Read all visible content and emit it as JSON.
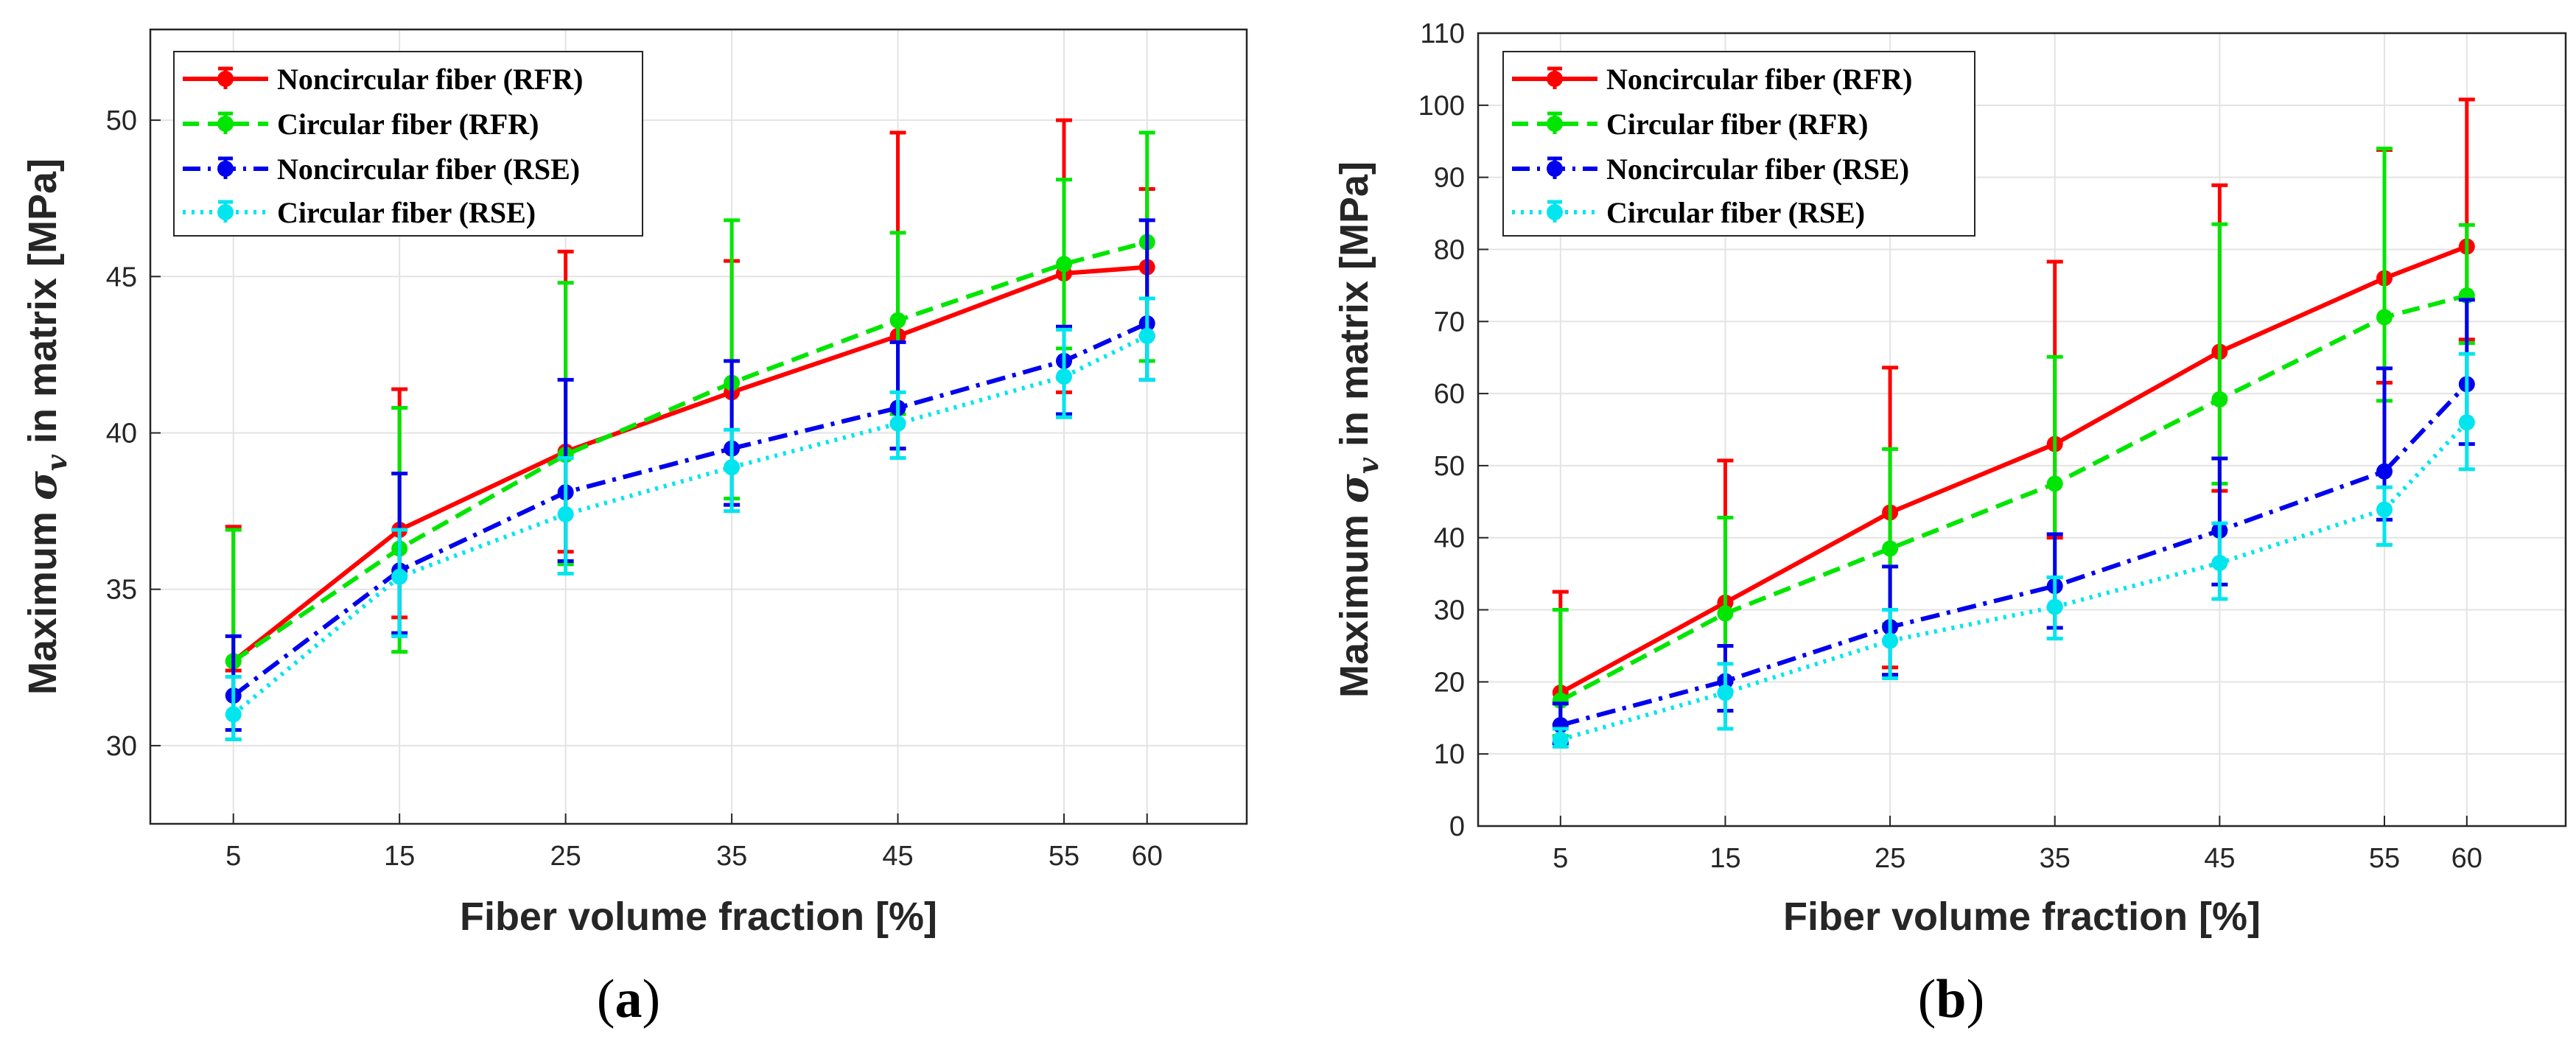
{
  "chart_data": [
    {
      "id": "a",
      "type": "line",
      "panel_label": "a",
      "xlabel": "Fiber volume fraction [%]",
      "ylabel_prefix": "Maximum ",
      "ylabel_symbol": "σ",
      "ylabel_subscript": "v",
      "ylabel_suffix": " in matrix [MPa]",
      "x": [
        5,
        15,
        25,
        35,
        45,
        55,
        60
      ],
      "xlim": [
        0,
        66
      ],
      "ylim": [
        27.5,
        52.9
      ],
      "yticks": [
        30,
        35,
        40,
        45,
        50
      ],
      "grid": true,
      "legend_position": "top-left",
      "series": [
        {
          "name": "Noncircular fiber (RFR)",
          "color": "#ff0000",
          "dash": "solid",
          "values": [
            32.7,
            36.9,
            39.4,
            41.3,
            43.1,
            45.1,
            45.3
          ],
          "err_lower": [
            32.4,
            34.1,
            36.2,
            37.7,
            39.5,
            41.3,
            43.1
          ],
          "err_upper": [
            37.0,
            41.4,
            45.8,
            45.5,
            49.6,
            50.0,
            47.8
          ]
        },
        {
          "name": "Circular fiber (RFR)",
          "color": "#00e600",
          "dash": "dashed",
          "values": [
            32.7,
            36.3,
            39.3,
            41.6,
            43.6,
            45.4,
            46.1
          ],
          "err_lower": [
            30.2,
            33.0,
            35.8,
            37.9,
            40.6,
            42.7,
            42.3
          ],
          "err_upper": [
            36.9,
            40.8,
            44.8,
            46.8,
            46.4,
            48.1,
            49.6
          ]
        },
        {
          "name": "Noncircular fiber (RSE)",
          "color": "#0000ee",
          "dash": "dashdot",
          "values": [
            31.6,
            35.6,
            38.1,
            39.5,
            40.8,
            42.3,
            43.5
          ],
          "err_lower": [
            30.5,
            33.6,
            35.9,
            37.7,
            39.5,
            40.6,
            41.7
          ],
          "err_upper": [
            33.5,
            38.7,
            41.7,
            42.3,
            42.9,
            43.4,
            46.8
          ]
        },
        {
          "name": "Circular fiber (RSE)",
          "color": "#00e5ee",
          "dash": "dotted",
          "values": [
            31.0,
            35.4,
            37.4,
            38.9,
            40.3,
            41.8,
            43.1
          ],
          "err_lower": [
            30.2,
            33.5,
            35.5,
            37.5,
            39.2,
            40.5,
            41.7
          ],
          "err_upper": [
            32.2,
            36.9,
            39.2,
            40.1,
            41.3,
            43.3,
            44.3
          ]
        }
      ]
    },
    {
      "id": "b",
      "type": "line",
      "panel_label": "b",
      "xlabel": "Fiber volume fraction [%]",
      "ylabel_prefix": "Maximum ",
      "ylabel_symbol": "σ",
      "ylabel_subscript": "v",
      "ylabel_suffix": " in matrix [MPa]",
      "x": [
        5,
        15,
        25,
        35,
        45,
        55,
        60
      ],
      "xlim": [
        0,
        66
      ],
      "ylim": [
        0,
        110
      ],
      "yticks": [
        0,
        10,
        20,
        30,
        40,
        50,
        60,
        70,
        80,
        90,
        100,
        110
      ],
      "grid": true,
      "legend_position": "top-left",
      "series": [
        {
          "name": "Noncircular fiber (RFR)",
          "color": "#ff0000",
          "dash": "solid",
          "values": [
            18.5,
            31.0,
            43.5,
            53.0,
            65.8,
            76.0,
            80.4
          ],
          "err_lower": [
            14.0,
            20.0,
            22.0,
            40.0,
            46.5,
            61.5,
            67.5
          ],
          "err_upper": [
            32.5,
            50.7,
            63.6,
            78.3,
            88.9,
            93.8,
            100.8
          ]
        },
        {
          "name": "Circular fiber (RFR)",
          "color": "#00e600",
          "dash": "dashed",
          "values": [
            17.4,
            29.5,
            38.5,
            47.5,
            59.2,
            70.6,
            73.6
          ],
          "err_lower": [
            12.5,
            20.5,
            28.0,
            34.5,
            47.5,
            59.0,
            67.0
          ],
          "err_upper": [
            30.0,
            42.8,
            52.3,
            65.1,
            83.5,
            94.0,
            83.4
          ]
        },
        {
          "name": "Noncircular fiber (RSE)",
          "color": "#0000ee",
          "dash": "dashdot",
          "values": [
            14.0,
            20.1,
            27.6,
            33.3,
            41.0,
            49.2,
            61.3
          ],
          "err_lower": [
            11.5,
            16.0,
            21.0,
            27.5,
            33.5,
            42.5,
            53.0
          ],
          "err_upper": [
            17.0,
            25.0,
            36.0,
            40.5,
            51.0,
            63.5,
            73.0
          ]
        },
        {
          "name": "Circular fiber (RSE)",
          "color": "#00e5ee",
          "dash": "dotted",
          "values": [
            12.0,
            18.5,
            25.7,
            30.4,
            36.5,
            43.9,
            56.0
          ],
          "err_lower": [
            11.0,
            13.5,
            20.5,
            26.0,
            31.5,
            39.0,
            49.5
          ],
          "err_upper": [
            13.5,
            22.5,
            30.0,
            34.5,
            42.0,
            47.0,
            65.5
          ]
        }
      ]
    }
  ]
}
